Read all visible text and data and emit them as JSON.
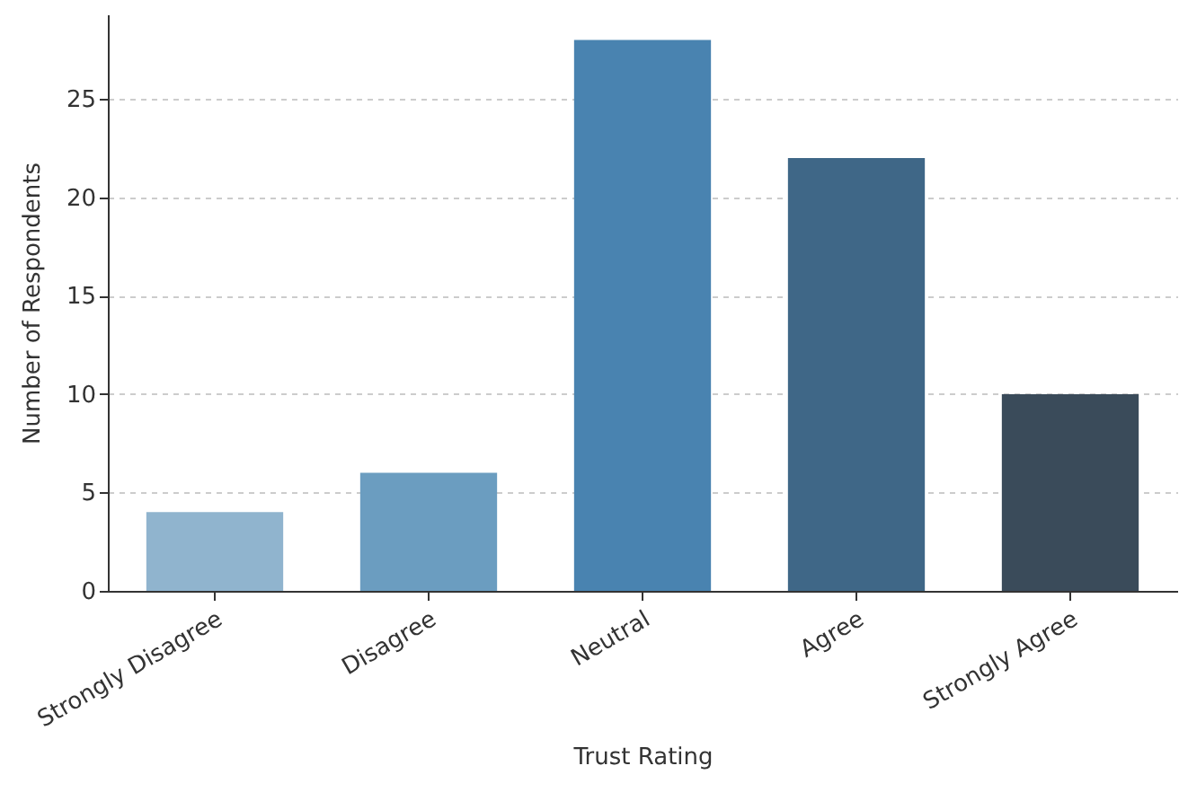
{
  "chart_data": {
    "type": "bar",
    "xlabel": "Trust Rating",
    "ylabel": "Number of Respondents",
    "categories": [
      "Strongly Disagree",
      "Disagree",
      "Neutral",
      "Agree",
      "Strongly Agree"
    ],
    "values": [
      4,
      6,
      28,
      22,
      10
    ],
    "colors": [
      "#90b4ce",
      "#6b9dc0",
      "#4983b0",
      "#3f6787",
      "#3a4b5a"
    ],
    "ylim": [
      0,
      29.3
    ],
    "yticks": [
      0,
      5,
      10,
      15,
      20,
      25
    ],
    "grid": "y"
  }
}
